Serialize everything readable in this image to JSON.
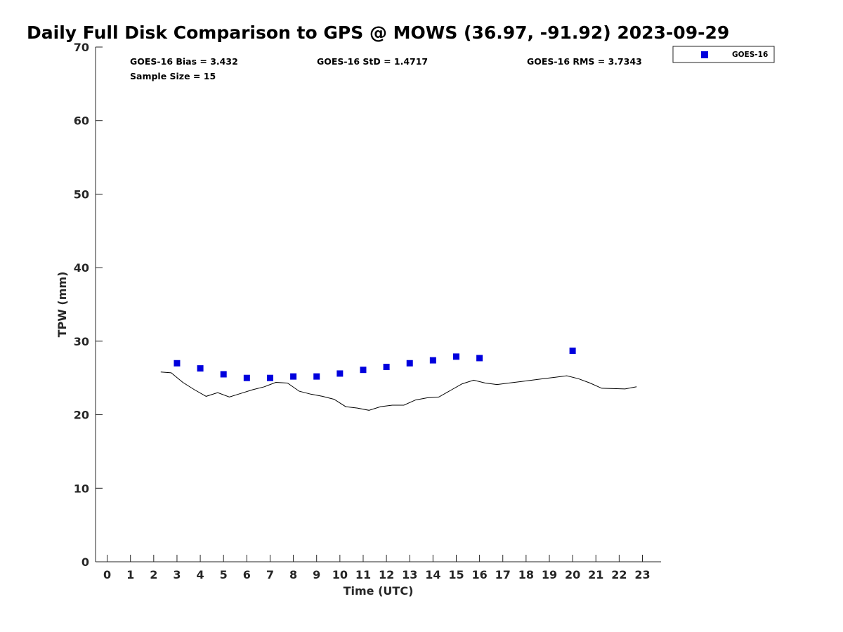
{
  "chart_data": {
    "type": "scatter",
    "title": "Daily Full Disk Comparison to GPS @ MOWS (36.97, -91.92) 2023-09-29",
    "xlabel": "Time (UTC)",
    "ylabel": "TPW (mm)",
    "xlim": [
      -0.5,
      23.8
    ],
    "ylim": [
      0,
      70
    ],
    "x_ticks": [
      0,
      1,
      2,
      3,
      4,
      5,
      6,
      7,
      8,
      9,
      10,
      11,
      12,
      13,
      14,
      15,
      16,
      17,
      18,
      19,
      20,
      21,
      22,
      23
    ],
    "y_ticks": [
      0,
      10,
      20,
      30,
      40,
      50,
      60,
      70
    ],
    "grid": false,
    "legend": {
      "position": "top-right",
      "entries": [
        "GOES-16"
      ]
    },
    "stats": {
      "bias": "GOES-16 Bias = 3.432",
      "std": "GOES-16 StD = 1.4717",
      "rms": "GOES-16 RMS = 3.7343",
      "sample": "Sample Size = 15"
    },
    "series": [
      {
        "name": "GOES-16",
        "kind": "scatter",
        "marker": "square",
        "color": "#0000dd",
        "x": [
          3,
          4,
          5,
          6,
          7,
          8,
          9,
          10,
          11,
          12,
          13,
          14,
          15,
          16,
          20
        ],
        "y": [
          27.0,
          26.3,
          25.5,
          25.0,
          25.0,
          25.2,
          25.2,
          25.6,
          26.1,
          26.5,
          27.0,
          27.4,
          27.9,
          27.7,
          28.7
        ]
      },
      {
        "name": "GPS",
        "kind": "line",
        "color": "#000000",
        "x": [
          2.3,
          2.75,
          3.25,
          3.75,
          4.25,
          4.75,
          5.25,
          5.75,
          6.25,
          6.75,
          7.25,
          7.75,
          8.25,
          8.75,
          9.25,
          9.75,
          10.25,
          10.75,
          11.25,
          11.75,
          12.25,
          12.75,
          13.25,
          13.75,
          14.25,
          14.75,
          15.25,
          15.75,
          16.25,
          16.75,
          17.25,
          17.75,
          18.25,
          18.75,
          19.25,
          19.75,
          20.25,
          20.75,
          21.25,
          21.75,
          22.25,
          22.75
        ],
        "y": [
          25.8,
          25.7,
          24.4,
          23.4,
          22.5,
          23.0,
          22.4,
          22.9,
          23.4,
          23.8,
          24.4,
          24.3,
          23.2,
          22.8,
          22.5,
          22.1,
          21.1,
          20.9,
          20.6,
          21.1,
          21.3,
          21.3,
          22.0,
          22.3,
          22.4,
          23.3,
          24.2,
          24.7,
          24.3,
          24.1,
          24.3,
          24.5,
          24.7,
          24.9,
          25.1,
          25.3,
          24.9,
          24.3,
          23.6,
          23.55,
          23.5,
          23.8
        ]
      }
    ]
  }
}
